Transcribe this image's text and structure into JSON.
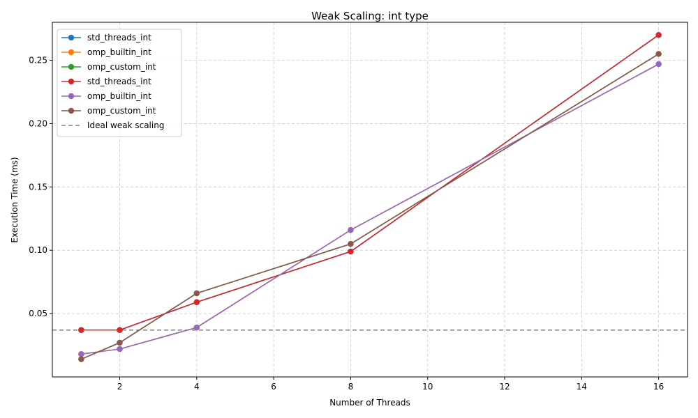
{
  "chart_data": {
    "type": "line",
    "title": "Weak Scaling: int type",
    "xlabel": "Number of Threads",
    "ylabel": "Execution Time (ms)",
    "xlim": [
      0.25,
      16.75
    ],
    "ylim": [
      0.0,
      0.28
    ],
    "xticks": [
      2,
      4,
      6,
      8,
      10,
      12,
      14,
      16
    ],
    "yticks": [
      0.05,
      0.1,
      0.15,
      0.2,
      0.25
    ],
    "xtick_labels": [
      "2",
      "4",
      "6",
      "8",
      "10",
      "12",
      "14",
      "16"
    ],
    "ytick_labels": [
      "0.05",
      "0.10",
      "0.15",
      "0.20",
      "0.25"
    ],
    "grid": true,
    "legend_position": "upper-left",
    "x": [
      1,
      2,
      4,
      8,
      16
    ],
    "series": [
      {
        "name": "std_threads_int",
        "color": "#1f77b4",
        "values": [
          0.037,
          0.037,
          0.059,
          0.099,
          0.27
        ]
      },
      {
        "name": "omp_builtin_int",
        "color": "#ff7f0e",
        "values": [
          0.018,
          0.022,
          0.039,
          0.116,
          0.247
        ]
      },
      {
        "name": "omp_custom_int",
        "color": "#2ca02c",
        "values": [
          0.014,
          0.027,
          0.066,
          0.105,
          0.255
        ]
      },
      {
        "name": "std_threads_int",
        "color": "#d62728",
        "values": [
          0.037,
          0.037,
          0.059,
          0.099,
          0.27
        ]
      },
      {
        "name": "omp_builtin_int",
        "color": "#9467bd",
        "values": [
          0.018,
          0.022,
          0.039,
          0.116,
          0.247
        ]
      },
      {
        "name": "omp_custom_int",
        "color": "#8c564b",
        "values": [
          0.014,
          0.027,
          0.066,
          0.105,
          0.255
        ]
      }
    ],
    "reference_line": {
      "name": "Ideal weak scaling",
      "value": 0.037,
      "color": "#808080",
      "style": "dashed"
    }
  }
}
